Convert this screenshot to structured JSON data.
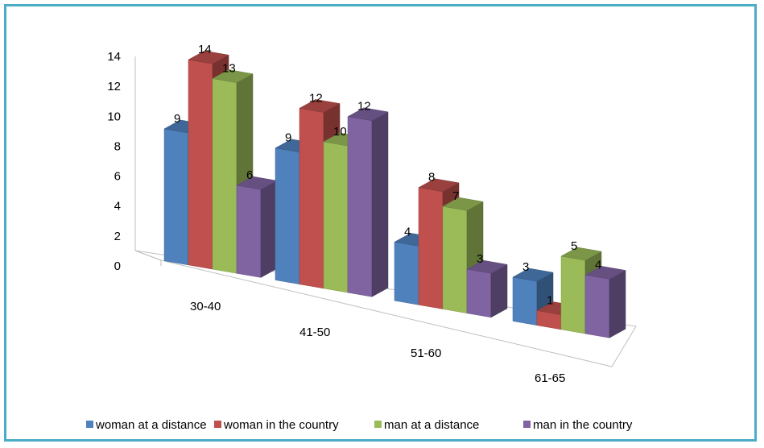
{
  "chart_data": {
    "type": "bar",
    "style": "3d-clustered-column",
    "title": "",
    "xlabel": "",
    "ylabel": "",
    "categories": [
      "30-40",
      "41-50",
      "51-60",
      "61-65"
    ],
    "series": [
      {
        "name": "woman at a distance",
        "color": "#4f81bd",
        "values": [
          9,
          9,
          4,
          3
        ]
      },
      {
        "name": "woman in the country",
        "color": "#c0504d",
        "values": [
          14,
          12,
          8,
          1
        ]
      },
      {
        "name": "man at a distance",
        "color": "#9bbb59",
        "values": [
          13,
          10,
          7,
          5
        ]
      },
      {
        "name": "man in the country",
        "color": "#8064a2",
        "values": [
          6,
          12,
          3,
          4
        ]
      }
    ],
    "yticks": [
      "0",
      "2",
      "4",
      "6",
      "8",
      "10",
      "12",
      "14"
    ],
    "ylim": [
      0,
      14
    ],
    "grid": false,
    "legend": "bottom"
  }
}
